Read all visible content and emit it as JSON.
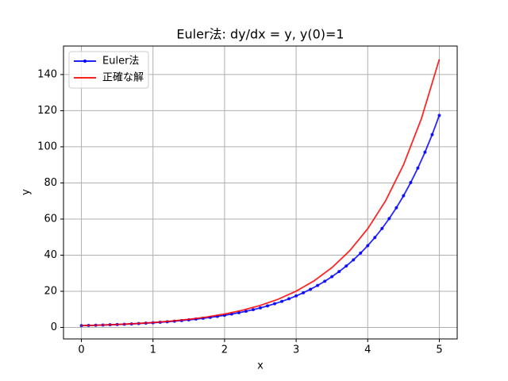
{
  "chart_data": {
    "type": "line",
    "title": "Euler法: dy/dx = y, y(0)=1",
    "xlabel": "x",
    "ylabel": "y",
    "series": [
      {
        "name": "Euler法",
        "color": "#0000ff",
        "marker": true,
        "x": [
          0,
          0.1,
          0.2,
          0.3,
          0.4,
          0.5,
          0.6,
          0.7,
          0.8,
          0.9,
          1,
          1.1,
          1.2,
          1.3,
          1.4,
          1.5,
          1.6,
          1.7,
          1.8,
          1.9,
          2,
          2.1,
          2.2,
          2.3,
          2.4,
          2.5,
          2.6,
          2.7,
          2.8,
          2.9,
          3,
          3.1,
          3.2,
          3.3,
          3.4,
          3.5,
          3.6,
          3.7,
          3.8,
          3.9,
          4,
          4.1,
          4.2,
          4.3,
          4.4,
          4.5,
          4.6,
          4.7,
          4.8,
          4.9,
          5
        ],
        "values": [
          1,
          1.1,
          1.21,
          1.33,
          1.46,
          1.61,
          1.77,
          1.95,
          2.14,
          2.36,
          2.59,
          2.85,
          3.14,
          3.45,
          3.8,
          4.18,
          4.59,
          5.05,
          5.56,
          6.12,
          6.73,
          7.4,
          8.14,
          8.95,
          9.85,
          10.83,
          11.92,
          13.11,
          14.42,
          15.86,
          17.45,
          19.19,
          21.11,
          23.23,
          25.55,
          28.1,
          30.91,
          34,
          37.4,
          41.14,
          45.26,
          49.79,
          54.76,
          60.24,
          66.26,
          72.89,
          80.18,
          88.2,
          97.02,
          106.72,
          117.39
        ]
      },
      {
        "name": "正確な解",
        "color": "#ff0000",
        "marker": false,
        "x": [
          0,
          0.25,
          0.5,
          0.75,
          1,
          1.25,
          1.5,
          1.75,
          2,
          2.25,
          2.5,
          2.75,
          3,
          3.25,
          3.5,
          3.75,
          4,
          4.25,
          4.5,
          4.75,
          5
        ],
        "values": [
          1,
          1.28,
          1.65,
          2.12,
          2.72,
          3.49,
          4.48,
          5.75,
          7.39,
          9.49,
          12.18,
          15.64,
          20.09,
          25.79,
          33.12,
          42.52,
          54.6,
          70.11,
          90.02,
          115.58,
          148.41
        ]
      }
    ],
    "xlim": [
      -0.25,
      5.25
    ],
    "xticks": [
      0,
      1,
      2,
      3,
      4,
      5
    ],
    "ylim": [
      -6.37,
      155.78
    ],
    "yticks": [
      0,
      20,
      40,
      60,
      80,
      100,
      120,
      140
    ],
    "grid": true,
    "legend": "upper-left"
  }
}
